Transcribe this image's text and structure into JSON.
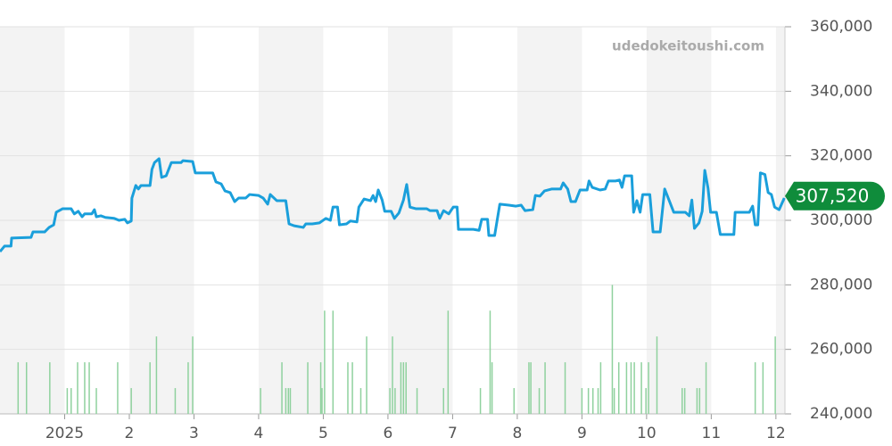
{
  "chart_data": {
    "type": "line",
    "watermark": "udedokeitoushi.com",
    "xlim": [
      0,
      12.14
    ],
    "xticks": [
      {
        "value": 1,
        "label": "2025"
      },
      2,
      3,
      4,
      5,
      6,
      7,
      8,
      9,
      10,
      11,
      12
    ],
    "ylim": [
      240000,
      360000
    ],
    "yticks": [
      {
        "value": 240000,
        "label": "240,000"
      },
      {
        "value": 260000,
        "label": "260,000"
      },
      {
        "value": 280000,
        "label": "280,000"
      },
      {
        "value": 300000,
        "label": "300,000"
      },
      {
        "value": 320000,
        "label": "320,000"
      },
      {
        "value": 340000,
        "label": "340,000"
      },
      {
        "value": 360000,
        "label": "360,000"
      }
    ],
    "y2lim": [
      0,
      15
    ],
    "grid": true,
    "last_value": 307520,
    "last_value_label": "307,520",
    "last_value_color": "#0f8c3b",
    "series": [
      {
        "type": "line",
        "color": "#1a9fdb",
        "x": [
          0.0,
          0.07,
          0.17,
          0.18,
          0.48,
          0.51,
          0.69,
          0.76,
          0.83,
          0.87,
          0.97,
          1.1,
          1.15,
          1.21,
          1.27,
          1.31,
          1.42,
          1.46,
          1.49,
          1.56,
          1.63,
          1.77,
          1.84,
          1.93,
          1.97,
          2.03,
          2.04,
          2.1,
          2.14,
          2.18,
          2.32,
          2.35,
          2.39,
          2.46,
          2.5,
          2.57,
          2.65,
          2.8,
          2.83,
          2.98,
          3.02,
          3.29,
          3.34,
          3.42,
          3.48,
          3.56,
          3.63,
          3.69,
          3.8,
          3.86,
          4.0,
          4.07,
          4.14,
          4.18,
          4.28,
          4.42,
          4.47,
          4.55,
          4.69,
          4.73,
          4.83,
          4.94,
          5.04,
          5.11,
          5.15,
          5.22,
          5.25,
          5.36,
          5.42,
          5.52,
          5.55,
          5.63,
          5.73,
          5.77,
          5.81,
          5.85,
          5.91,
          5.95,
          6.05,
          6.1,
          6.17,
          6.24,
          6.29,
          6.34,
          6.43,
          6.6,
          6.65,
          6.76,
          6.8,
          6.86,
          6.94,
          7.01,
          7.07,
          7.09,
          7.32,
          7.41,
          7.45,
          7.54,
          7.56,
          7.65,
          7.73,
          7.87,
          7.98,
          8.06,
          8.12,
          8.24,
          8.28,
          8.35,
          8.42,
          8.53,
          8.67,
          8.71,
          8.78,
          8.83,
          8.9,
          8.97,
          9.08,
          9.11,
          9.16,
          9.28,
          9.36,
          9.41,
          9.52,
          9.58,
          9.62,
          9.66,
          9.77,
          9.8,
          9.85,
          9.9,
          9.94,
          10.05,
          10.1,
          10.21,
          10.28,
          10.42,
          10.6,
          10.66,
          10.7,
          10.74,
          10.81,
          10.86,
          10.9,
          10.95,
          10.99,
          11.08,
          11.14,
          11.35,
          11.37,
          11.59,
          11.64,
          11.68,
          11.72,
          11.76,
          11.83,
          11.88,
          11.93,
          11.98,
          12.05,
          12.13
        ],
        "values": [
          290300,
          292000,
          292000,
          294500,
          294700,
          296400,
          296400,
          297800,
          298600,
          302500,
          303600,
          303600,
          302000,
          302800,
          301100,
          302000,
          302000,
          303300,
          301100,
          301400,
          300900,
          300600,
          300000,
          300300,
          299200,
          299800,
          306900,
          310800,
          309700,
          310800,
          310800,
          315800,
          317900,
          319100,
          313300,
          313800,
          317900,
          317900,
          318500,
          318200,
          314700,
          314700,
          311900,
          311300,
          309100,
          308600,
          305800,
          306900,
          306900,
          308000,
          307700,
          306900,
          305000,
          308000,
          306100,
          306100,
          298900,
          298300,
          297800,
          298900,
          298900,
          299200,
          300600,
          300000,
          304100,
          304100,
          298600,
          298900,
          299800,
          299500,
          304100,
          306600,
          306100,
          307700,
          305800,
          309400,
          306300,
          302800,
          302800,
          300600,
          302300,
          306300,
          311100,
          304100,
          303600,
          303600,
          303000,
          303000,
          300600,
          303000,
          302000,
          304100,
          304100,
          297200,
          297200,
          296900,
          300300,
          300300,
          295300,
          295300,
          305000,
          304700,
          304400,
          304700,
          303000,
          303300,
          307700,
          307500,
          309100,
          309700,
          309700,
          311600,
          309700,
          305800,
          305800,
          309400,
          309400,
          312200,
          310200,
          309400,
          309700,
          312200,
          312200,
          312500,
          310200,
          313800,
          313800,
          302500,
          306100,
          302500,
          308000,
          308000,
          296400,
          296400,
          309700,
          302500,
          302500,
          301400,
          306300,
          297500,
          299200,
          302800,
          315500,
          310000,
          302500,
          302500,
          295600,
          295600,
          302500,
          302500,
          304400,
          298600,
          298600,
          314700,
          314200,
          308600,
          308000,
          304100,
          303300,
          306900
        ]
      },
      {
        "type": "bar",
        "axis": "y2",
        "color": "#8fd19e",
        "x": [
          0.28,
          0.41,
          0.77,
          1.04,
          1.1,
          1.2,
          1.31,
          1.38,
          1.49,
          1.82,
          2.03,
          2.32,
          2.42,
          2.71,
          2.91,
          2.98,
          4.03,
          4.36,
          4.42,
          4.46,
          4.49,
          4.76,
          4.96,
          4.98,
          5.02,
          5.15,
          5.38,
          5.45,
          5.58,
          5.67,
          6.03,
          6.07,
          6.11,
          6.2,
          6.24,
          6.28,
          6.45,
          6.86,
          6.93,
          7.43,
          7.58,
          7.61,
          7.95,
          8.18,
          8.21,
          8.34,
          8.43,
          8.74,
          9.0,
          9.1,
          9.17,
          9.25,
          9.29,
          9.47,
          9.5,
          9.57,
          9.69,
          9.76,
          9.81,
          9.92,
          9.99,
          10.03,
          10.16,
          10.55,
          10.59,
          10.78,
          10.82,
          10.92,
          11.68,
          11.8,
          11.99
        ],
        "values": [
          2,
          2,
          2,
          1,
          1,
          2,
          2,
          2,
          1,
          2,
          1,
          2,
          3,
          1,
          2,
          3,
          1,
          2,
          1,
          1,
          1,
          2,
          2,
          1,
          4,
          4,
          2,
          2,
          1,
          3,
          1,
          3,
          1,
          2,
          2,
          2,
          1,
          1,
          4,
          1,
          4,
          2,
          1,
          2,
          2,
          1,
          2,
          2,
          1,
          1,
          1,
          1,
          2,
          5,
          1,
          2,
          2,
          2,
          2,
          2,
          1,
          2,
          3,
          1,
          1,
          1,
          1,
          2,
          2,
          2,
          3
        ]
      }
    ]
  }
}
